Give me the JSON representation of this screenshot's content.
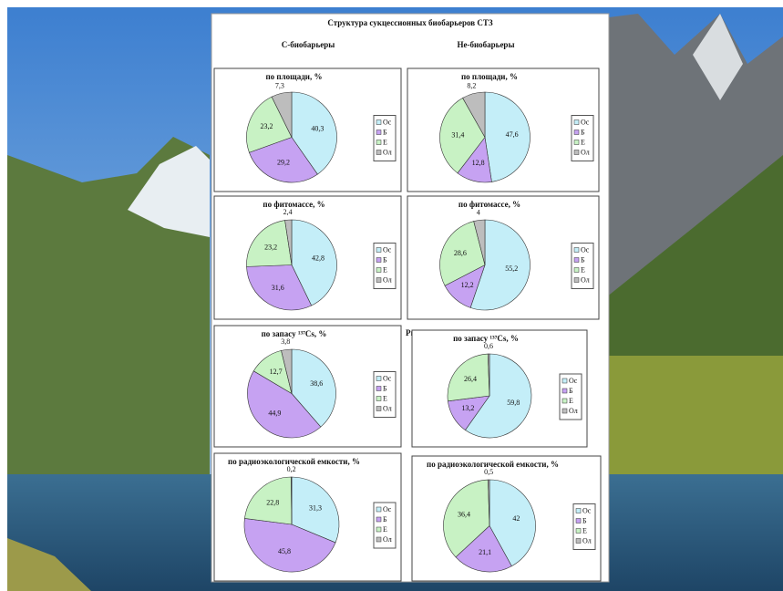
{
  "document": {
    "title": "Структура сукцессионных биобарьеров СТЗ",
    "left_heading": "С-биобарьеры",
    "right_heading": "Не-биобарьеры",
    "figure_label": "Рис. 4"
  },
  "chart_data": [
    {
      "type": "pie",
      "title": "по площади, %",
      "categories": [
        "Ос",
        "Б",
        "Е",
        "Ол"
      ],
      "values": [
        40.3,
        29.2,
        23.2,
        7.3
      ],
      "value_labels": [
        "40,3",
        "29,2",
        "23,2",
        "7,3"
      ],
      "colors": [
        "#c4eef8",
        "#c6a2f2",
        "#c8f2c4",
        "#bdbdbd"
      ]
    },
    {
      "type": "pie",
      "title": "по площади, %",
      "categories": [
        "Ос",
        "Б",
        "Е",
        "Ол"
      ],
      "values": [
        47.6,
        12.8,
        31.4,
        8.2
      ],
      "value_labels": [
        "47,6",
        "12,8",
        "31,4",
        "8,2"
      ],
      "colors": [
        "#c4eef8",
        "#c6a2f2",
        "#c8f2c4",
        "#bdbdbd"
      ]
    },
    {
      "type": "pie",
      "title": "по фитомассе, %",
      "categories": [
        "Ос",
        "Б",
        "Е",
        "Ол"
      ],
      "values": [
        42.8,
        31.6,
        23.2,
        2.4
      ],
      "value_labels": [
        "42,8",
        "31,6",
        "23,2",
        "2,4"
      ],
      "colors": [
        "#c4eef8",
        "#c6a2f2",
        "#c8f2c4",
        "#bdbdbd"
      ]
    },
    {
      "type": "pie",
      "title": "по фитомассе, %",
      "categories": [
        "Ос",
        "Б",
        "Е",
        "Ол"
      ],
      "values": [
        55.2,
        12.2,
        28.6,
        4
      ],
      "value_labels": [
        "55,2",
        "12,2",
        "28,6",
        "4"
      ],
      "colors": [
        "#c4eef8",
        "#c6a2f2",
        "#c8f2c4",
        "#bdbdbd"
      ]
    },
    {
      "type": "pie",
      "title": "по запасу ¹³⁷Cs, %",
      "categories": [
        "Ос",
        "Б",
        "Е",
        "Ол"
      ],
      "values": [
        38.6,
        44.9,
        12.7,
        3.8
      ],
      "value_labels": [
        "38,6",
        "44,9",
        "12,7",
        "3,8"
      ],
      "colors": [
        "#c4eef8",
        "#c6a2f2",
        "#c8f2c4",
        "#bdbdbd"
      ]
    },
    {
      "type": "pie",
      "title": "по запасу ¹³⁷Cs, %",
      "categories": [
        "Ос",
        "Б",
        "Е",
        "Ол"
      ],
      "values": [
        59.8,
        13.2,
        26.4,
        0.6
      ],
      "value_labels": [
        "59,8",
        "13,2",
        "26,4",
        "0,6"
      ],
      "colors": [
        "#c4eef8",
        "#c6a2f2",
        "#c8f2c4",
        "#bdbdbd"
      ]
    },
    {
      "type": "pie",
      "title": "по радиоэкологической емкости, %",
      "categories": [
        "Ос",
        "Б",
        "Е",
        "Ол"
      ],
      "values": [
        31.3,
        45.8,
        22.8,
        0.2
      ],
      "value_labels": [
        "31,3",
        "45,8",
        "22,8",
        "0,2"
      ],
      "colors": [
        "#c4eef8",
        "#c6a2f2",
        "#c8f2c4",
        "#bdbdbd"
      ]
    },
    {
      "type": "pie",
      "title": "по радиоэкологической емкости, %",
      "categories": [
        "Ос",
        "Б",
        "Е",
        "Ол"
      ],
      "values": [
        42,
        21.1,
        36.4,
        0.5
      ],
      "value_labels": [
        "42",
        "21,1",
        "36,4",
        "0,5"
      ],
      "colors": [
        "#c4eef8",
        "#c6a2f2",
        "#c8f2c4",
        "#bdbdbd"
      ]
    }
  ]
}
